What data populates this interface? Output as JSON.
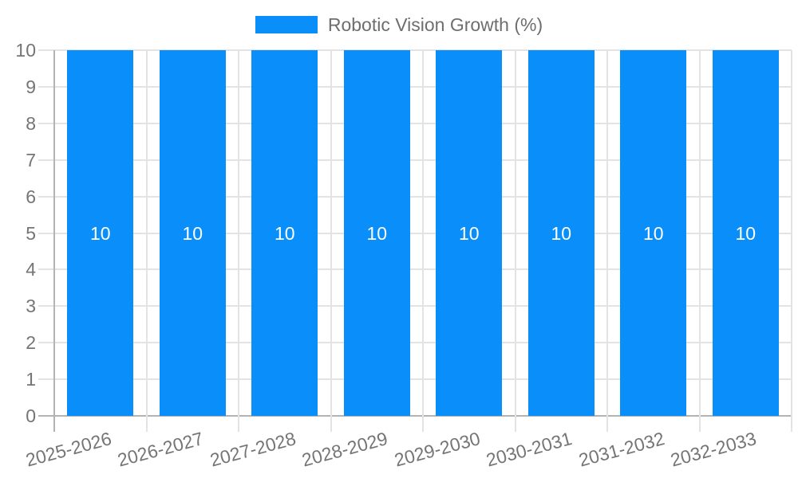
{
  "legend": {
    "label": "Robotic Vision Growth (%)"
  },
  "chart_data": {
    "type": "bar",
    "title": "",
    "categories": [
      "2025-2026",
      "2026-2027",
      "2027-2028",
      "2028-2029",
      "2029-2030",
      "2030-2031",
      "2031-2032",
      "2032-2033"
    ],
    "series": [
      {
        "name": "Robotic Vision Growth (%)",
        "values": [
          10,
          10,
          10,
          10,
          10,
          10,
          10,
          10
        ]
      }
    ],
    "bar_value_labels": [
      "10",
      "10",
      "10",
      "10",
      "10",
      "10",
      "10",
      "10"
    ],
    "ylim": [
      0,
      10
    ],
    "yticks": [
      0,
      1,
      2,
      3,
      4,
      5,
      6,
      7,
      8,
      9,
      10
    ],
    "grid": true,
    "legend_position": "top",
    "colors": {
      "bar": "#0A8FFA",
      "grid": "#E3E3E3",
      "axis": "#B3B3B3",
      "tick_label": "#757575",
      "legend_label": "#6E6E6E",
      "bar_value_label": "#FFFFFF"
    }
  }
}
